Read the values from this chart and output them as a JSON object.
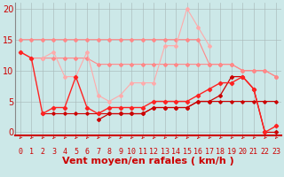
{
  "x": [
    0,
    1,
    2,
    3,
    4,
    5,
    6,
    7,
    8,
    9,
    10,
    11,
    12,
    13,
    14,
    15,
    16,
    17,
    18,
    19,
    20,
    21,
    22,
    23
  ],
  "line1": [
    13,
    12,
    12,
    12,
    12,
    12,
    12,
    11,
    11,
    11,
    11,
    11,
    11,
    11,
    11,
    11,
    11,
    11,
    11,
    11,
    10,
    10,
    10,
    9
  ],
  "line2": [
    15,
    15,
    15,
    15,
    15,
    15,
    15,
    15,
    15,
    15,
    15,
    15,
    15,
    15,
    15,
    15,
    15,
    11,
    11,
    11,
    10,
    10,
    10,
    9
  ],
  "line3": [
    null,
    null,
    12,
    13,
    9,
    9,
    13,
    6,
    5,
    6,
    8,
    8,
    8,
    14,
    14,
    20,
    17,
    14,
    null,
    null,
    null,
    null,
    null,
    null
  ],
  "line4": [
    13,
    12,
    3,
    4,
    4,
    9,
    4,
    3,
    4,
    4,
    4,
    4,
    5,
    5,
    5,
    5,
    6,
    7,
    8,
    8,
    9,
    7,
    0,
    1
  ],
  "line5": [
    null,
    null,
    3,
    3,
    3,
    3,
    3,
    3,
    3,
    3,
    3,
    3,
    4,
    4,
    4,
    4,
    5,
    5,
    5,
    5,
    5,
    5,
    5,
    5
  ],
  "line6": [
    null,
    null,
    null,
    null,
    null,
    null,
    null,
    2,
    3,
    3,
    3,
    3,
    4,
    4,
    4,
    4,
    5,
    5,
    6,
    9,
    9,
    7,
    0,
    0
  ],
  "background_color": "#cce8e8",
  "grid_color": "#aabbbb",
  "line1_color": "#ff8888",
  "line2_color": "#ff8888",
  "line3_color": "#ffaaaa",
  "line4_color": "#ff2222",
  "line5_color": "#cc0000",
  "line6_color": "#cc0000",
  "xlabel": "Vent moyen/en rafales ( km/h )",
  "ylabel_ticks": [
    0,
    5,
    10,
    15,
    20
  ],
  "xlim": [
    -0.5,
    23.5
  ],
  "ylim": [
    -0.5,
    21
  ],
  "label_fontsize": 7,
  "tick_fontsize": 6,
  "arrow_color": "#cc2222"
}
